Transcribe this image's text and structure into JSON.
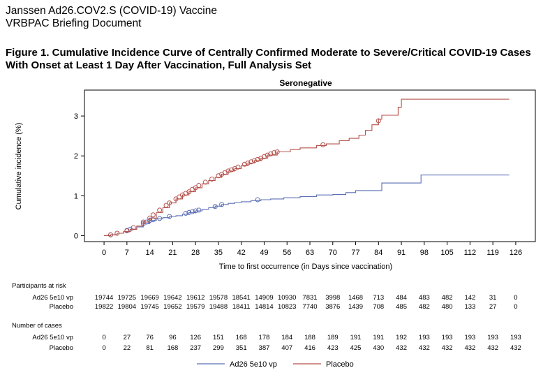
{
  "header": {
    "line1": "Janssen Ad26.COV2.S (COVID-19) Vaccine",
    "line2": "VRBPAC Briefing Document"
  },
  "figure": {
    "caption": "Figure 1. Cumulative Incidence Curve of Centrally Confirmed Moderate to Severe/Critical COVID-19 Cases With Onset at Least 1 Day After Vaccination, Full Analysis Set"
  },
  "colors": {
    "vaccine": "#5b6fb5",
    "placebo": "#b5504a",
    "axis": "#000000"
  },
  "chart_data": {
    "type": "line",
    "title": "Seronegative",
    "xlabel": "Time to first occurrence (in Days since vaccination)",
    "ylabel": "Cumulative incidence (%)",
    "xlim": [
      -6,
      132
    ],
    "ylim": [
      -0.15,
      3.65
    ],
    "xticks": [
      0,
      7,
      14,
      21,
      28,
      35,
      42,
      49,
      56,
      63,
      70,
      77,
      84,
      91,
      98,
      105,
      112,
      119,
      126
    ],
    "yticks": [
      0,
      1,
      2,
      3
    ],
    "series": [
      {
        "name": "Ad26 5e10 vp",
        "color": "#5b6fb5",
        "points": [
          [
            0,
            0
          ],
          [
            2,
            0.02
          ],
          [
            4,
            0.06
          ],
          [
            6,
            0.1
          ],
          [
            8,
            0.16
          ],
          [
            10,
            0.22
          ],
          [
            12,
            0.3
          ],
          [
            14,
            0.38
          ],
          [
            16,
            0.42
          ],
          [
            18,
            0.45
          ],
          [
            20,
            0.48
          ],
          [
            22,
            0.5
          ],
          [
            24,
            0.54
          ],
          [
            26,
            0.58
          ],
          [
            28,
            0.62
          ],
          [
            30,
            0.66
          ],
          [
            32,
            0.7
          ],
          [
            34,
            0.74
          ],
          [
            36,
            0.78
          ],
          [
            38,
            0.81
          ],
          [
            40,
            0.83
          ],
          [
            42,
            0.85
          ],
          [
            45,
            0.88
          ],
          [
            48,
            0.9
          ],
          [
            51,
            0.92
          ],
          [
            55,
            0.95
          ],
          [
            60,
            0.98
          ],
          [
            65,
            1.02
          ],
          [
            70,
            1.03
          ],
          [
            74,
            1.08
          ],
          [
            77,
            1.13
          ],
          [
            85,
            1.32
          ],
          [
            97,
            1.52
          ],
          [
            124,
            1.52
          ]
        ],
        "censor_marks": [
          [
            2,
            0.02
          ],
          [
            7,
            0.13
          ],
          [
            8,
            0.16
          ],
          [
            12,
            0.3
          ],
          [
            13,
            0.34
          ],
          [
            14,
            0.38
          ],
          [
            15,
            0.4
          ],
          [
            17,
            0.43
          ],
          [
            20,
            0.48
          ],
          [
            25,
            0.56
          ],
          [
            26,
            0.58
          ],
          [
            27,
            0.6
          ],
          [
            28,
            0.62
          ],
          [
            29,
            0.64
          ],
          [
            34,
            0.73
          ],
          [
            36,
            0.78
          ],
          [
            47,
            0.9
          ]
        ]
      },
      {
        "name": "Placebo",
        "color": "#b5504a",
        "points": [
          [
            0,
            0
          ],
          [
            2,
            0.02
          ],
          [
            4,
            0.06
          ],
          [
            6,
            0.1
          ],
          [
            8,
            0.16
          ],
          [
            10,
            0.24
          ],
          [
            12,
            0.34
          ],
          [
            14,
            0.44
          ],
          [
            16,
            0.58
          ],
          [
            18,
            0.7
          ],
          [
            20,
            0.82
          ],
          [
            22,
            0.92
          ],
          [
            24,
            1.02
          ],
          [
            26,
            1.1
          ],
          [
            28,
            1.2
          ],
          [
            30,
            1.3
          ],
          [
            32,
            1.38
          ],
          [
            34,
            1.46
          ],
          [
            36,
            1.54
          ],
          [
            38,
            1.62
          ],
          [
            40,
            1.68
          ],
          [
            42,
            1.76
          ],
          [
            44,
            1.82
          ],
          [
            46,
            1.88
          ],
          [
            48,
            1.94
          ],
          [
            50,
            2.02
          ],
          [
            53,
            2.1
          ],
          [
            57,
            2.16
          ],
          [
            60,
            2.2
          ],
          [
            65,
            2.26
          ],
          [
            68,
            2.3
          ],
          [
            72,
            2.38
          ],
          [
            75,
            2.44
          ],
          [
            78,
            2.52
          ],
          [
            80,
            2.64
          ],
          [
            82,
            2.78
          ],
          [
            84,
            2.92
          ],
          [
            85,
            3.02
          ],
          [
            87,
            3.02
          ],
          [
            90,
            3.22
          ],
          [
            91,
            3.42
          ],
          [
            124,
            3.42
          ]
        ],
        "censor_marks": [
          [
            2,
            0.02
          ],
          [
            4,
            0.06
          ],
          [
            7,
            0.12
          ],
          [
            9,
            0.2
          ],
          [
            12,
            0.34
          ],
          [
            14,
            0.44
          ],
          [
            15,
            0.52
          ],
          [
            17,
            0.64
          ],
          [
            19,
            0.76
          ],
          [
            20,
            0.82
          ],
          [
            22,
            0.92
          ],
          [
            23,
            0.97
          ],
          [
            24,
            1.02
          ],
          [
            25,
            1.06
          ],
          [
            26,
            1.1
          ],
          [
            27,
            1.16
          ],
          [
            28,
            1.2
          ],
          [
            29,
            1.26
          ],
          [
            31,
            1.34
          ],
          [
            33,
            1.42
          ],
          [
            35,
            1.5
          ],
          [
            36,
            1.54
          ],
          [
            37,
            1.58
          ],
          [
            38,
            1.62
          ],
          [
            39,
            1.65
          ],
          [
            40,
            1.68
          ],
          [
            41,
            1.72
          ],
          [
            43,
            1.79
          ],
          [
            44,
            1.82
          ],
          [
            45,
            1.85
          ],
          [
            46,
            1.88
          ],
          [
            47,
            1.91
          ],
          [
            48,
            1.94
          ],
          [
            49,
            1.98
          ],
          [
            50,
            2.02
          ],
          [
            51,
            2.05
          ],
          [
            52,
            2.08
          ],
          [
            53,
            2.1
          ],
          [
            67,
            2.28
          ],
          [
            84,
            2.88
          ]
        ]
      }
    ],
    "risk_table": {
      "heading": "Participants at risk",
      "rows": [
        {
          "label": "Ad26 5e10 vp",
          "values": [
            "19744",
            "19725",
            "19669",
            "19642",
            "19612",
            "19578",
            "18541",
            "14909",
            "10930",
            "7831",
            "3998",
            "1468",
            "713",
            "484",
            "483",
            "482",
            "142",
            "31",
            "0"
          ]
        },
        {
          "label": "Placebo",
          "values": [
            "19822",
            "19804",
            "19745",
            "19652",
            "19579",
            "19488",
            "18411",
            "14814",
            "10823",
            "7740",
            "3876",
            "1439",
            "708",
            "485",
            "482",
            "480",
            "133",
            "27",
            "0"
          ]
        }
      ]
    },
    "cases_table": {
      "heading": "Number of cases",
      "rows": [
        {
          "label": "Ad26 5e10 vp",
          "values": [
            "0",
            "27",
            "76",
            "96",
            "126",
            "151",
            "168",
            "178",
            "184",
            "188",
            "189",
            "191",
            "191",
            "192",
            "193",
            "193",
            "193",
            "193",
            "193"
          ]
        },
        {
          "label": "Placebo",
          "values": [
            "0",
            "22",
            "81",
            "168",
            "237",
            "299",
            "351",
            "387",
            "407",
            "416",
            "423",
            "425",
            "430",
            "432",
            "432",
            "432",
            "432",
            "432",
            "432"
          ]
        }
      ]
    },
    "legend": {
      "position": "bottom",
      "entries": [
        "Ad26 5e10 vp",
        "Placebo"
      ]
    }
  }
}
